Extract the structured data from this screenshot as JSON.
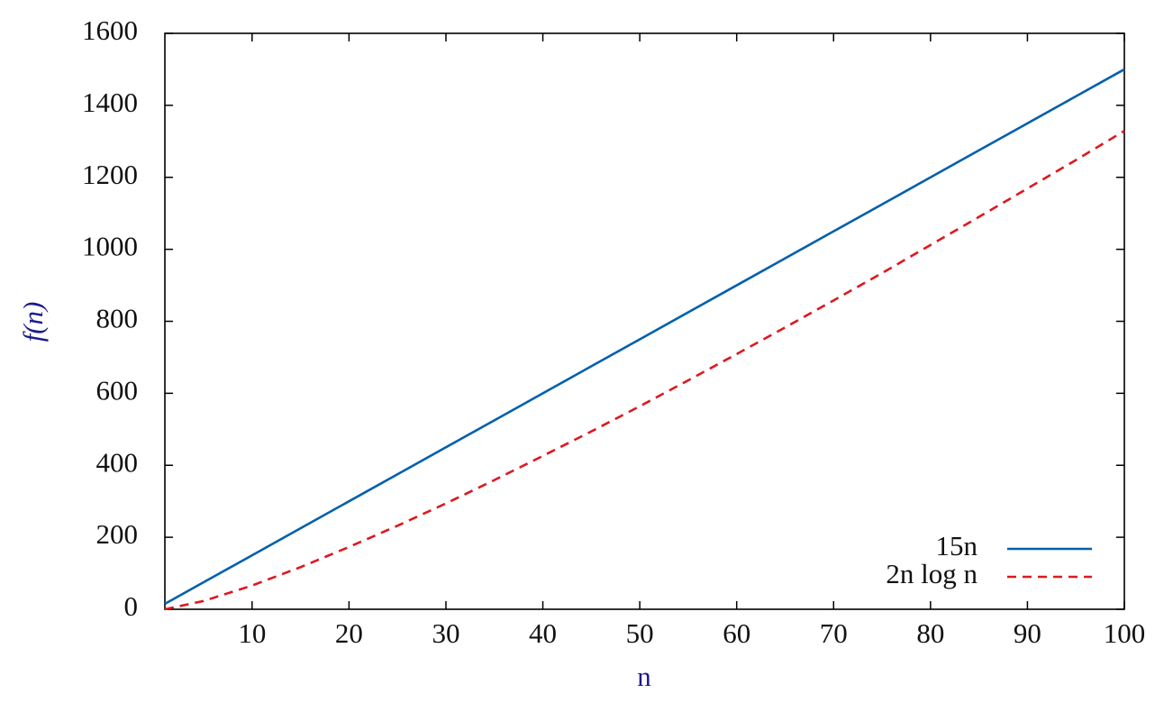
{
  "chart_data": {
    "type": "line",
    "xlabel": "n",
    "ylabel": "f(n)",
    "x": [
      1,
      5,
      10,
      15,
      20,
      25,
      30,
      35,
      40,
      45,
      50,
      55,
      60,
      65,
      70,
      75,
      80,
      85,
      90,
      95,
      100
    ],
    "series": [
      {
        "name": "15n",
        "color": "#0060ad",
        "style": "solid",
        "values": [
          15,
          75,
          150,
          225,
          300,
          375,
          450,
          525,
          600,
          675,
          750,
          825,
          900,
          975,
          1050,
          1125,
          1200,
          1275,
          1350,
          1425,
          1500
        ]
      },
      {
        "name": "2n log n",
        "color": "#dd181f",
        "style": "dashed",
        "values": [
          0,
          23,
          66,
          117,
          173,
          232,
          294,
          359,
          426,
          494,
          564,
          636,
          709,
          783,
          858,
          934,
          1012,
          1090,
          1169,
          1248,
          1329
        ]
      }
    ],
    "xlim": [
      1,
      100
    ],
    "xticks": [
      10,
      20,
      30,
      40,
      50,
      60,
      70,
      80,
      90,
      100
    ],
    "ylim": [
      0,
      1600
    ],
    "yticks": [
      0,
      200,
      400,
      600,
      800,
      1000,
      1200,
      1400,
      1600
    ],
    "grid": false,
    "legend": "bottom-right"
  }
}
